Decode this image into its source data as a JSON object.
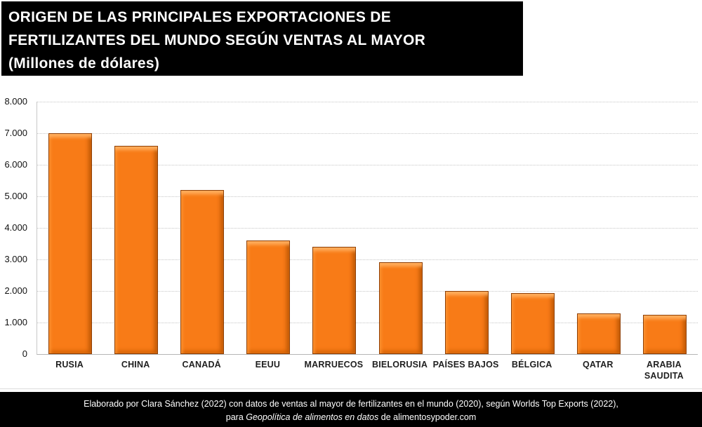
{
  "title": {
    "line1": "ORIGEN DE LAS PRINCIPALES EXPORTACIONES DE",
    "line2": "FERTILIZANTES DEL MUNDO SEGÚN VENTAS AL MAYOR",
    "line3": "(Millones de dólares)"
  },
  "chart_data": {
    "type": "bar",
    "title": "ORIGEN DE LAS PRINCIPALES EXPORTACIONES DE FERTILIZANTES DEL MUNDO SEGÚN VENTAS AL MAYOR (Millones de dólares)",
    "unit": "Millones de dólares",
    "categories": [
      "RUSIA",
      "CHINA",
      "CANADÁ",
      "EEUU",
      "MARRUECOS",
      "BIELORUSIA",
      "PAÍSES BAJOS",
      "BÉLGICA",
      "QATAR",
      "ARABIA SAUDITA"
    ],
    "label_lines": [
      [
        "RUSIA"
      ],
      [
        "CHINA"
      ],
      [
        "CANADÁ"
      ],
      [
        "EEUU"
      ],
      [
        "MARRUECOS"
      ],
      [
        "BIELORUSIA"
      ],
      [
        "PAÍSES BAJOS"
      ],
      [
        "BÉLGICA"
      ],
      [
        "QATAR"
      ],
      [
        "ARABIA",
        "SAUDITA"
      ]
    ],
    "values": [
      7000,
      6600,
      5200,
      3600,
      3400,
      2900,
      2000,
      1930,
      1290,
      1240
    ],
    "xlabel": "",
    "ylabel": "",
    "ylim": [
      0,
      8000
    ],
    "y_ticks": [
      {
        "value": 8000,
        "label": "8.000"
      },
      {
        "value": 7000,
        "label": "7.000"
      },
      {
        "value": 6000,
        "label": "6.000"
      },
      {
        "value": 5000,
        "label": "5.000"
      },
      {
        "value": 4000,
        "label": "4.000"
      },
      {
        "value": 3000,
        "label": "3.000"
      },
      {
        "value": 2000,
        "label": "2.000"
      },
      {
        "value": 1000,
        "label": "1.000"
      },
      {
        "value": 0,
        "label": "0"
      }
    ],
    "grid": "horizontal-dotted",
    "legend": "none",
    "bar_color": "#f87b17",
    "bar_border_color": "#8e3f05",
    "bar_highlight_color": "#ffad5c",
    "bar_shadow_color": "#c25a06"
  },
  "footer": {
    "line1": "Elaborado por Clara Sánchez (2022) con datos de ventas al mayor de fertilizantes en el mundo (2020), según Worlds Top Exports (2022),",
    "line2_prefix": "para ",
    "line2_italic": "Geopolítica de alimentos en datos",
    "line2_suffix": " de alimentosypoder.com"
  }
}
